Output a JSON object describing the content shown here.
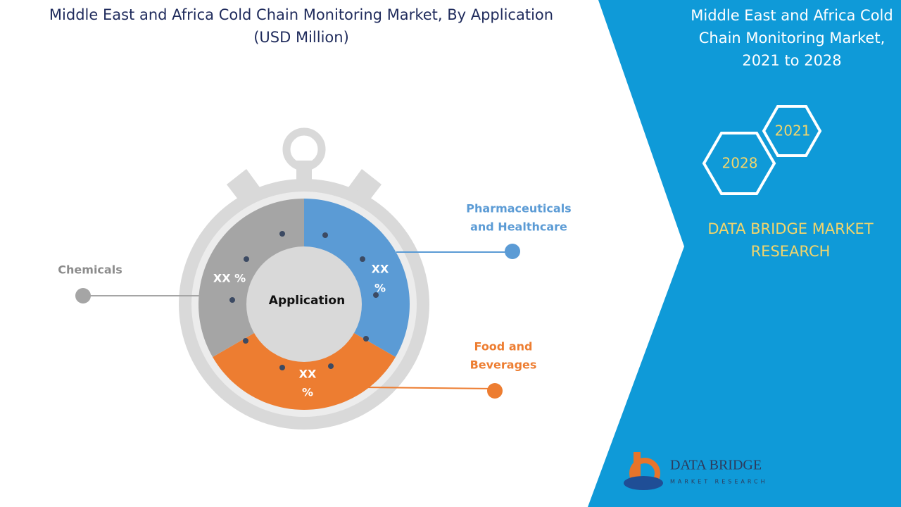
{
  "header": {
    "title": [
      "Middle East and Africa Cold Chain Monitoring Market, By Application",
      "(USD Million)"
    ]
  },
  "diagram": {
    "center_label": "Application",
    "segments": [
      {
        "name": [
          "Pharmaceuticals",
          "and Healthcare"
        ],
        "label": [
          "XX",
          "%"
        ]
      },
      {
        "name": [
          "Food and",
          "Beverages"
        ],
        "label": [
          "XX",
          "%"
        ]
      },
      {
        "name": [
          "Chemicals"
        ],
        "label": [
          "XX %"
        ]
      }
    ]
  },
  "side_panel": {
    "title": [
      "Middle East and Africa Cold",
      "Chain Monitoring Market,",
      "2021 to 2028"
    ],
    "years": [
      "2021",
      "2028"
    ],
    "brand": [
      "DATA BRIDGE MARKET",
      "RESEARCH"
    ]
  },
  "logo": {
    "name": "DATA BRIDGE",
    "tagline": "MARKET RESEARCH"
  }
}
